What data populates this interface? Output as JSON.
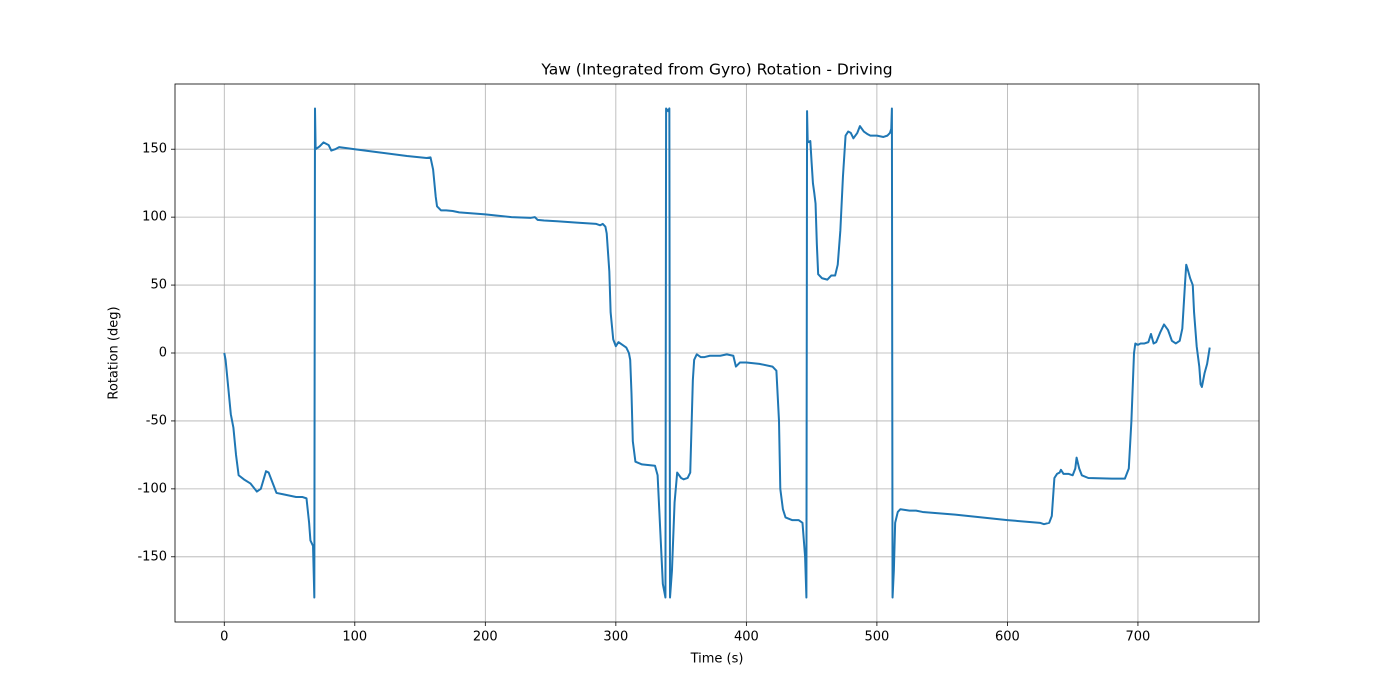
{
  "chart_data": {
    "type": "line",
    "title": "Yaw (Integrated from Gyro) Rotation - Driving",
    "xlabel": "Time (s)",
    "ylabel": "Rotation (deg)",
    "color": "#1f77b4",
    "grid": true,
    "xlim": [
      -37.75,
      792.75
    ],
    "xticks": [
      0,
      100,
      200,
      300,
      400,
      500,
      600,
      700
    ],
    "ylim": [
      -198,
      198
    ],
    "yticks": [
      -150,
      -100,
      -50,
      0,
      50,
      100,
      150
    ],
    "x": [
      0,
      1,
      3,
      5,
      7,
      9,
      11,
      15,
      20,
      25,
      28,
      32,
      34,
      38,
      40,
      45,
      50,
      55,
      60,
      63,
      65,
      66,
      68,
      69,
      69.5,
      70,
      73,
      76,
      80,
      82,
      85,
      88,
      100,
      120,
      140,
      155,
      158,
      160,
      162,
      163,
      166,
      170,
      175,
      180,
      200,
      220,
      235,
      238,
      240,
      245,
      255,
      270,
      285,
      288,
      290,
      292,
      293,
      295,
      296,
      298,
      300,
      302,
      305,
      308,
      310,
      311,
      312,
      313,
      315,
      320,
      330,
      332,
      334,
      336,
      338,
      338.5,
      340,
      341,
      341.5,
      343,
      345,
      347,
      350,
      352,
      355,
      357,
      359,
      360,
      362,
      365,
      368,
      372,
      380,
      385,
      390,
      392,
      395,
      400,
      410,
      420,
      423,
      425,
      426,
      428,
      430,
      435,
      440,
      443,
      445,
      446,
      446.5,
      447,
      449,
      450,
      451,
      452,
      453,
      454,
      455,
      458,
      462,
      465,
      468,
      470,
      472,
      474,
      476,
      478,
      480,
      482,
      485,
      487,
      490,
      493,
      495,
      500,
      505,
      508,
      510,
      511,
      511.5,
      512,
      513,
      514,
      516,
      518,
      525,
      530,
      535,
      560,
      600,
      625,
      628,
      632,
      634,
      636,
      638,
      640,
      641,
      643,
      647,
      650,
      652,
      653,
      655,
      657,
      662,
      680,
      690,
      693,
      695,
      697,
      698,
      700,
      702,
      705,
      708,
      710,
      712,
      714,
      717,
      720,
      723,
      726,
      729,
      732,
      734,
      736,
      737,
      738,
      740,
      742,
      743,
      745,
      747,
      748,
      749,
      751,
      753,
      755
    ],
    "values": [
      0,
      -5,
      -25,
      -45,
      -55,
      -75,
      -90,
      -93,
      -96,
      -102,
      -100,
      -87,
      -88,
      -98,
      -103,
      -104,
      -105,
      -106,
      -106,
      -107,
      -125,
      -138,
      -142,
      -180,
      180,
      150,
      152,
      155,
      153,
      149,
      150,
      151.5,
      150,
      147.5,
      145,
      143.5,
      144,
      135,
      115,
      108,
      105,
      105,
      104.5,
      103.5,
      102,
      100,
      99.5,
      100,
      98,
      97.5,
      97,
      96,
      95,
      94,
      95,
      93,
      88,
      60,
      30,
      10,
      5,
      8,
      6,
      4,
      0,
      -5,
      -30,
      -65,
      -80,
      -82,
      -83,
      -90,
      -130,
      -170,
      -180,
      180,
      178,
      180,
      -180,
      -160,
      -110,
      -88,
      -92,
      -93,
      -92,
      -88,
      -20,
      -5,
      -1,
      -3,
      -3,
      -2,
      -2,
      -1,
      -2,
      -10,
      -7,
      -7,
      -8,
      -10,
      -13,
      -50,
      -100,
      -115,
      -121,
      -123,
      -123,
      -125,
      -150,
      -180,
      178,
      155,
      156,
      140,
      125,
      118,
      110,
      80,
      58,
      55,
      54,
      57,
      57,
      65,
      90,
      130,
      160,
      163,
      162,
      158,
      162,
      167,
      163,
      161,
      160,
      160,
      159,
      160,
      162,
      165,
      180,
      -180,
      -160,
      -125,
      -117,
      -115,
      -116,
      -116,
      -117,
      -119,
      -123,
      -125,
      -126,
      -125,
      -120,
      -92,
      -89,
      -88,
      -86,
      -89,
      -89,
      -90,
      -85,
      -77,
      -85,
      -90,
      -92,
      -92.5,
      -92.5,
      -85,
      -50,
      0,
      7,
      6,
      7,
      7,
      8,
      14,
      7,
      8,
      15,
      21,
      17,
      9,
      7,
      9,
      18,
      50,
      65,
      62,
      55,
      50,
      30,
      5,
      -10,
      -23,
      -25,
      -15,
      -8,
      4
    ]
  }
}
